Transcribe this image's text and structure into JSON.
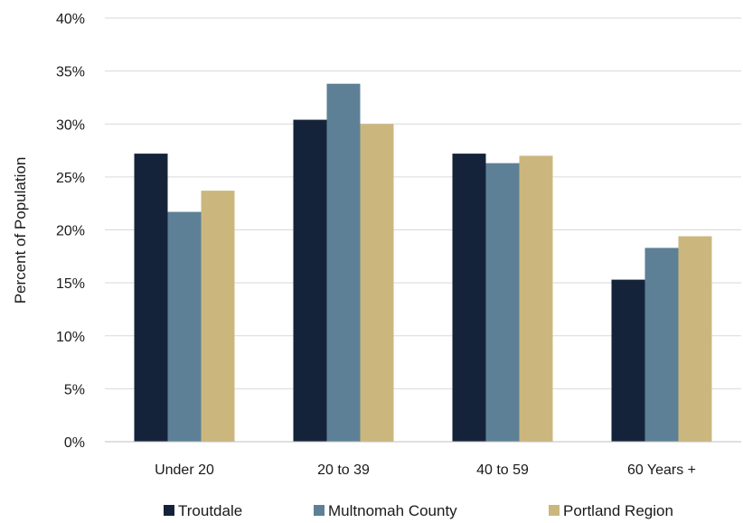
{
  "chart_data": {
    "type": "bar",
    "title": "",
    "xlabel": "",
    "ylabel": "Percent of Population",
    "ylim": [
      0,
      40
    ],
    "yticks": [
      "0%",
      "5%",
      "10%",
      "15%",
      "20%",
      "25%",
      "30%",
      "35%",
      "40%"
    ],
    "grid": true,
    "legend_position": "bottom",
    "categories": [
      "Under 20",
      "20 to 39",
      "40 to 59",
      "60 Years +"
    ],
    "series": [
      {
        "name": "Troutdale",
        "color": "#15233a",
        "values": [
          27.2,
          30.4,
          27.2,
          15.3
        ]
      },
      {
        "name": "Multnomah County",
        "color": "#5d8096",
        "values": [
          21.7,
          33.8,
          26.3,
          18.3
        ]
      },
      {
        "name": "Portland Region",
        "color": "#cbb77e",
        "values": [
          23.7,
          30.0,
          27.0,
          19.4
        ]
      }
    ]
  }
}
